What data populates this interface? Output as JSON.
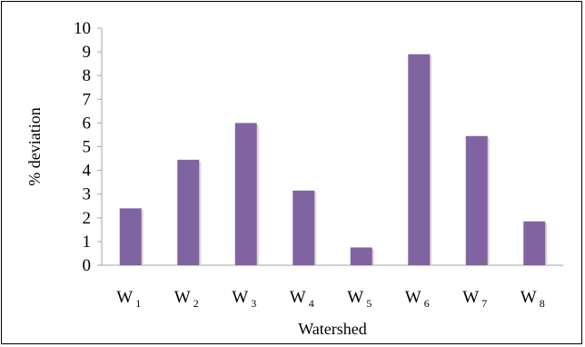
{
  "chart_data": {
    "type": "bar",
    "categories": [
      {
        "base": "W",
        "sub": "1"
      },
      {
        "base": "W",
        "sub": "2"
      },
      {
        "base": "W",
        "sub": "3"
      },
      {
        "base": "W",
        "sub": "4"
      },
      {
        "base": "W",
        "sub": "5"
      },
      {
        "base": "W",
        "sub": "6"
      },
      {
        "base": "W",
        "sub": "7"
      },
      {
        "base": "W",
        "sub": "8"
      }
    ],
    "values": [
      2.4,
      4.45,
      6.0,
      3.15,
      0.75,
      8.9,
      5.45,
      1.85
    ],
    "xlabel": "Watershed",
    "ylabel": "% deviation",
    "ylim": [
      0,
      10
    ],
    "yticks": [
      "0",
      "1",
      "2",
      "3",
      "4",
      "5",
      "6",
      "7",
      "8",
      "9",
      "10"
    ],
    "grid": false,
    "legend": "none",
    "bar_color": "#8064a2",
    "bar_shadow_color": "#d9c3c3"
  }
}
